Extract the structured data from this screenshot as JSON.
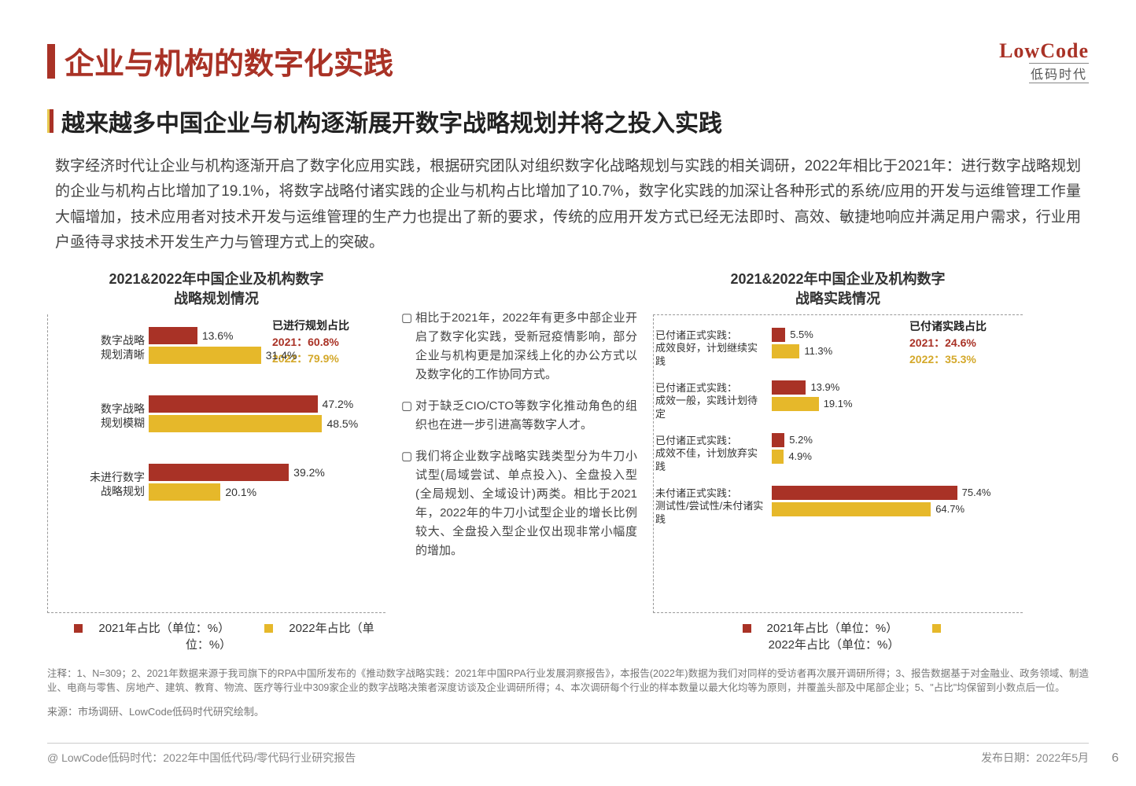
{
  "header": {
    "title": "企业与机构的数字化实践",
    "logo_top": "LowCode",
    "logo_bottom": "低码时代"
  },
  "subtitle": "越来越多中国企业与机构逐渐展开数字战略规划并将之投入实践",
  "body": "数字经济时代让企业与机构逐渐开启了数字化应用实践，根据研究团队对组织数字化战略规划与实践的相关调研，2022年相比于2021年：进行数字战略规划的企业与机构占比增加了19.1%，将数字战略付诸实践的企业与机构占比增加了10.7%，数字化实践的加深让各种形式的系统/应用的开发与运维管理工作量大幅增加，技术应用者对技术开发与运维管理的生产力也提出了新的要求，传统的应用开发方式已经无法即时、高效、敏捷地响应并满足用户需求，行业用户亟待寻求技术开发生产力与管理方式上的突破。",
  "chart_left": {
    "title_l1": "2021&2022年中国企业及机构数字",
    "title_l2": "战略规划情况",
    "summary_title": "已进行规划占比",
    "summary_2021": "2021：60.8%",
    "summary_2022": "2022：79.9%",
    "max": 55,
    "groups": [
      {
        "cat": "数字战略\n规划清晰",
        "v21": 13.6,
        "v22": 31.4,
        "l21": "13.6%",
        "l22": "31.4%"
      },
      {
        "cat": "数字战略\n规划模糊",
        "v21": 47.2,
        "v22": 48.5,
        "l21": "47.2%",
        "l22": "48.5%"
      },
      {
        "cat": "未进行数字\n战略规划",
        "v21": 39.2,
        "v22": 20.1,
        "l21": "39.2%",
        "l22": "20.1%"
      }
    ]
  },
  "chart_right": {
    "title_l1": "2021&2022年中国企业及机构数字",
    "title_l2": "战略实践情况",
    "summary_title": "已付诸实践占比",
    "summary_2021": "2021：24.6%",
    "summary_2022": "2022：35.3%",
    "max": 80,
    "groups": [
      {
        "cat": "已付诸正式实践：\n成效良好，计划继续实践",
        "v21": 5.5,
        "v22": 11.3,
        "l21": "5.5%",
        "l22": "11.3%"
      },
      {
        "cat": "已付诸正式实践：\n成效一般，实践计划待定",
        "v21": 13.9,
        "v22": 19.1,
        "l21": "13.9%",
        "l22": "19.1%"
      },
      {
        "cat": "已付诸正式实践：\n成效不佳，计划放弃实践",
        "v21": 5.2,
        "v22": 4.9,
        "l21": "5.2%",
        "l22": "4.9%"
      },
      {
        "cat": "未付诸正式实践：\n测试性/尝试性/未付诸实践",
        "v21": 75.4,
        "v22": 64.7,
        "l21": "75.4%",
        "l22": "64.7%"
      }
    ]
  },
  "bullets": [
    "相比于2021年，2022年有更多中部企业开启了数字化实践，受新冠疫情影响，部分企业与机构更是加深线上化的办公方式以及数字化的工作协同方式。",
    "对于缺乏CIO/CTO等数字化推动角色的组织也在进一步引进高等数字人才。",
    "我们将企业数字战略实践类型分为牛刀小试型(局域尝试、单点投入)、全盘投入型(全局规划、全域设计)两类。相比于2021年，2022年的牛刀小试型企业的增长比例较大、全盘投入型企业仅出现非常小幅度的增加。"
  ],
  "legend": {
    "y21": "2021年占比（单位：%）",
    "y22": "2022年占比（单位：%）"
  },
  "footnote": "注释：1、N=309；2、2021年数据来源于我司旗下的RPA中国所发布的《推动数字战略实践：2021年中国RPA行业发展洞察报告》，本报告(2022年)数据为我们对同样的受访者再次展开调研所得；3、报告数据基于对金融业、政务领域、制造业、电商与零售、房地产、建筑、教育、物流、医疗等行业中309家企业的数字战略决策者深度访谈及企业调研所得；4、本次调研每个行业的样本数量以最大化均等为原则，并覆盖头部及中尾部企业；5、\"占比\"均保留到小数点后一位。",
  "source": "来源：市场调研、LowCode低码时代研究绘制。",
  "bottom": {
    "left": "@ LowCode低码时代：2022年中国低代码/零代码行业研究报告",
    "right": "发布日期：2022年5月",
    "page": "6"
  },
  "colors": {
    "red": "#a93226",
    "yellow": "#e6b82a",
    "text": "#444444",
    "bg": "#ffffff"
  }
}
